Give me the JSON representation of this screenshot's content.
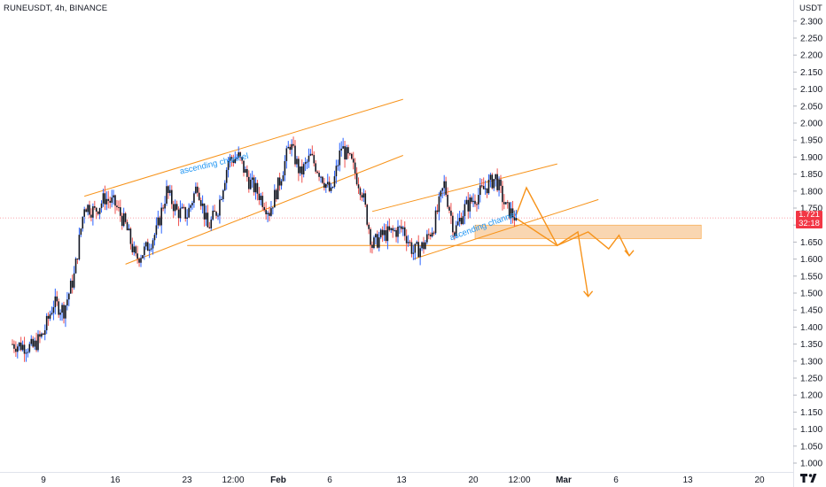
{
  "header": {
    "symbol": "RUNEUSDT, 4h, BINANCE",
    "unit": "USDT"
  },
  "last_price": {
    "value": "1.721",
    "countdown": "32:18",
    "color": "#f23645"
  },
  "colors": {
    "up": "#26a69a",
    "down": "#ef5350",
    "candle_body": "#131722",
    "wick_up": "#2962ff",
    "wick_down": "#ef5350",
    "annotation": "#f7931a",
    "zone_fill": "#f9cfa4",
    "label_blue": "#2196f3"
  },
  "annotations": [
    {
      "text": "ascending channel"
    },
    {
      "text": "ascending channel"
    }
  ],
  "chart_data": {
    "type": "candlestick",
    "title": "RUNEUSDT, 4h, BINANCE",
    "ylabel": "USDT",
    "ylim": [
      0.97,
      2.33
    ],
    "y_ticks": [
      "1.000",
      "1.050",
      "1.100",
      "1.150",
      "1.200",
      "1.250",
      "1.300",
      "1.350",
      "1.400",
      "1.450",
      "1.500",
      "1.550",
      "1.600",
      "1.650",
      "1.700",
      "1.750",
      "1.800",
      "1.850",
      "1.900",
      "1.950",
      "2.000",
      "2.050",
      "2.100",
      "2.150",
      "2.200",
      "2.250",
      "2.300"
    ],
    "x_ticks": [
      {
        "label": "9",
        "bold": false
      },
      {
        "label": "16",
        "bold": false
      },
      {
        "label": "23",
        "bold": false
      },
      {
        "label": "12:00",
        "bold": false
      },
      {
        "label": "Feb",
        "bold": true
      },
      {
        "label": "6",
        "bold": false
      },
      {
        "label": "13",
        "bold": false
      },
      {
        "label": "20",
        "bold": false
      },
      {
        "label": "12:00",
        "bold": false
      },
      {
        "label": "Mar",
        "bold": true
      },
      {
        "label": "6",
        "bold": false
      },
      {
        "label": "13",
        "bold": false
      },
      {
        "label": "20",
        "bold": false
      }
    ],
    "price_path_waypoints": [
      [
        "Jan 6",
        1.35
      ],
      [
        "Jan 8",
        1.34
      ],
      [
        "Jan 9",
        1.38
      ],
      [
        "Jan 10",
        1.47
      ],
      [
        "Jan 11",
        1.45
      ],
      [
        "Jan 12",
        1.55
      ],
      [
        "Jan 13",
        1.76
      ],
      [
        "Jan 14",
        1.74
      ],
      [
        "Jan 15",
        1.78
      ],
      [
        "Jan 16",
        1.76
      ],
      [
        "Jan 17",
        1.7
      ],
      [
        "Jan 18",
        1.6
      ],
      [
        "Jan 19",
        1.63
      ],
      [
        "Jan 20",
        1.68
      ],
      [
        "Jan 21",
        1.8
      ],
      [
        "Jan 22",
        1.74
      ],
      [
        "Jan 23",
        1.73
      ],
      [
        "Jan 24",
        1.82
      ],
      [
        "Jan 25",
        1.69
      ],
      [
        "Jan 26",
        1.75
      ],
      [
        "Jan 27",
        1.89
      ],
      [
        "Jan 28",
        1.9
      ],
      [
        "Jan 29",
        1.83
      ],
      [
        "Jan 30",
        1.79
      ],
      [
        "Jan 31",
        1.74
      ],
      [
        "Feb 1",
        1.83
      ],
      [
        "Feb 2",
        1.94
      ],
      [
        "Feb 3",
        1.85
      ],
      [
        "Feb 4",
        1.9
      ],
      [
        "Feb 5",
        1.85
      ],
      [
        "Feb 6",
        1.79
      ],
      [
        "Feb 7",
        1.93
      ],
      [
        "Feb 8",
        1.88
      ],
      [
        "Feb 9",
        1.8
      ],
      [
        "Feb 10",
        1.64
      ],
      [
        "Feb 11",
        1.67
      ],
      [
        "Feb 12",
        1.68
      ],
      [
        "Feb 13",
        1.69
      ],
      [
        "Feb 14",
        1.62
      ],
      [
        "Feb 15",
        1.64
      ],
      [
        "Feb 16",
        1.7
      ],
      [
        "Feb 17",
        1.82
      ],
      [
        "Feb 18",
        1.68
      ],
      [
        "Feb 19",
        1.75
      ],
      [
        "Feb 20",
        1.78
      ],
      [
        "Feb 21",
        1.81
      ],
      [
        "Feb 22",
        1.84
      ],
      [
        "Feb 23",
        1.75
      ],
      [
        "Feb 24",
        1.721
      ]
    ],
    "channel_1": {
      "label": "ascending channel",
      "upper": [
        [
          "Jan 13",
          1.785
        ],
        [
          "Feb 13",
          2.07
        ]
      ],
      "lower": [
        [
          "Jan 17",
          1.585
        ],
        [
          "Feb 13",
          1.905
        ]
      ]
    },
    "support_line": {
      "price": 1.64,
      "from": "Jan 23",
      "to": "Feb 28"
    },
    "channel_2": {
      "label": "ascending channel",
      "upper": [
        [
          "Feb 10",
          1.74
        ],
        [
          "Feb 28",
          1.88
        ]
      ],
      "lower": [
        [
          "Feb 14",
          1.6
        ],
        [
          "Mar 4",
          1.775
        ]
      ]
    },
    "resistance_zone": {
      "low": 1.66,
      "high": 1.7,
      "from": "Feb 20",
      "to": "Mar 14"
    },
    "projection": [
      [
        "Feb 24",
        1.73
      ],
      [
        "Feb 25",
        1.81
      ],
      [
        "Feb 28",
        1.64
      ],
      [
        "Mar 2",
        1.68
      ],
      [
        "Mar 3",
        1.49
      ]
    ],
    "projection_2": [
      [
        "Feb 24",
        1.72
      ],
      [
        "Feb 28",
        1.64
      ],
      [
        "Mar 3",
        1.68
      ],
      [
        "Mar 5",
        1.63
      ],
      [
        "Mar 6",
        1.67
      ],
      [
        "Mar 7",
        1.61
      ]
    ]
  }
}
